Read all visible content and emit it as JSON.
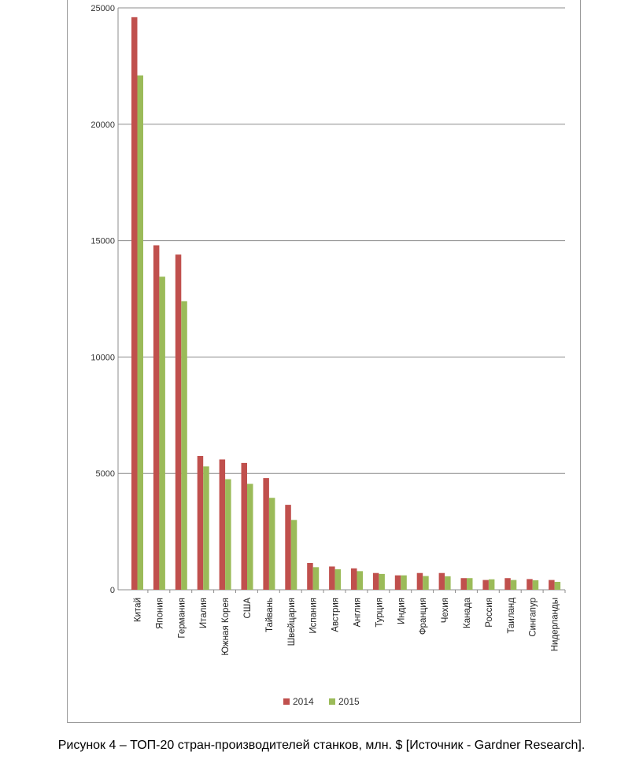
{
  "caption": "Рисунок 4 – ТОП-20 стран-производителей станков, млн. $  [Источник - Gardner Research].",
  "chart_data": {
    "type": "bar",
    "title": "",
    "xlabel": "",
    "ylabel": "",
    "ylim": [
      0,
      25000
    ],
    "yticks": [
      0,
      5000,
      10000,
      15000,
      20000,
      25000
    ],
    "grid": true,
    "legend_position": "bottom",
    "categories": [
      "Китай",
      "Япония",
      "Германия",
      "Италия",
      "Южная Корея",
      "США",
      "Тайвань",
      "Швейцария",
      "Испания",
      "Австрия",
      "Англия",
      "Турция",
      "Индия",
      "Франция",
      "Чехия",
      "Канада",
      "Россия",
      "Таиланд",
      "Сингапур",
      "Нидерланды"
    ],
    "series": [
      {
        "name": "2014",
        "color": "#c0504d",
        "values": [
          24600,
          14800,
          14400,
          5750,
          5600,
          5450,
          4800,
          3650,
          1150,
          1000,
          920,
          720,
          620,
          720,
          720,
          500,
          420,
          500,
          460,
          420
        ]
      },
      {
        "name": "2015",
        "color": "#9bbb59",
        "values": [
          22100,
          13450,
          12400,
          5300,
          4750,
          4550,
          3950,
          3000,
          970,
          880,
          800,
          680,
          620,
          590,
          580,
          500,
          450,
          420,
          410,
          340
        ]
      }
    ]
  }
}
